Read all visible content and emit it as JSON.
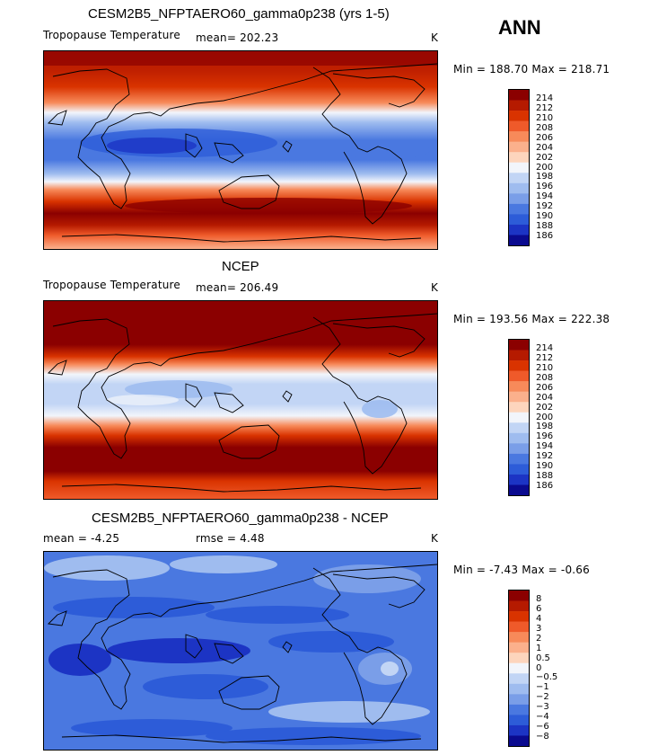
{
  "season": "ANN",
  "units": "K",
  "panels": [
    {
      "title": "CESM2B5_NFPTAERO60_gamma0p238 (yrs 1-5)",
      "left_label": "Tropopause Temperature",
      "mean_text": "mean= 202.23",
      "minmax_text": "Min = 188.70 Max = 218.71",
      "colorbar_labels": [
        "214",
        "212",
        "210",
        "208",
        "206",
        "204",
        "202",
        "200",
        "198",
        "196",
        "194",
        "192",
        "190",
        "188",
        "186"
      ]
    },
    {
      "title": "NCEP",
      "left_label": "Tropopause Temperature",
      "mean_text": "mean= 206.49",
      "minmax_text": "Min = 193.56 Max = 222.38",
      "colorbar_labels": [
        "214",
        "212",
        "210",
        "208",
        "206",
        "204",
        "202",
        "200",
        "198",
        "196",
        "194",
        "192",
        "190",
        "188",
        "186"
      ]
    },
    {
      "title": "CESM2B5_NFPTAERO60_gamma0p238 - NCEP",
      "mean_text": "mean =   -4.25",
      "rmse_text": "rmse =    4.48",
      "minmax_text": "Min =  -7.43 Max =  -0.66",
      "colorbar_labels": [
        "8",
        "6",
        "4",
        "3",
        "2",
        "1",
        "0.5",
        "0",
        "-0.5",
        "-1",
        "-2",
        "-3",
        "-4",
        "-6",
        "-8"
      ]
    }
  ],
  "colors": {
    "temp_scale": [
      "#8b0000",
      "#b51a00",
      "#d93300",
      "#ef5a2a",
      "#f78a5a",
      "#fbb08c",
      "#fdd5bd",
      "#f2f5fb",
      "#c2d5f5",
      "#9fbcef",
      "#7a9ee8",
      "#4a78e0",
      "#2d5cd8",
      "#1c34c4",
      "#0a0a8f"
    ],
    "diff_scale": [
      "#8b0000",
      "#b51a00",
      "#d93300",
      "#ef5a2a",
      "#f78a5a",
      "#fbb08c",
      "#fdd5bd",
      "#f2f5fb",
      "#c2d5f5",
      "#9fbcef",
      "#7a9ee8",
      "#4a78e0",
      "#2d5cd8",
      "#1c34c4",
      "#0a0a8f"
    ]
  }
}
